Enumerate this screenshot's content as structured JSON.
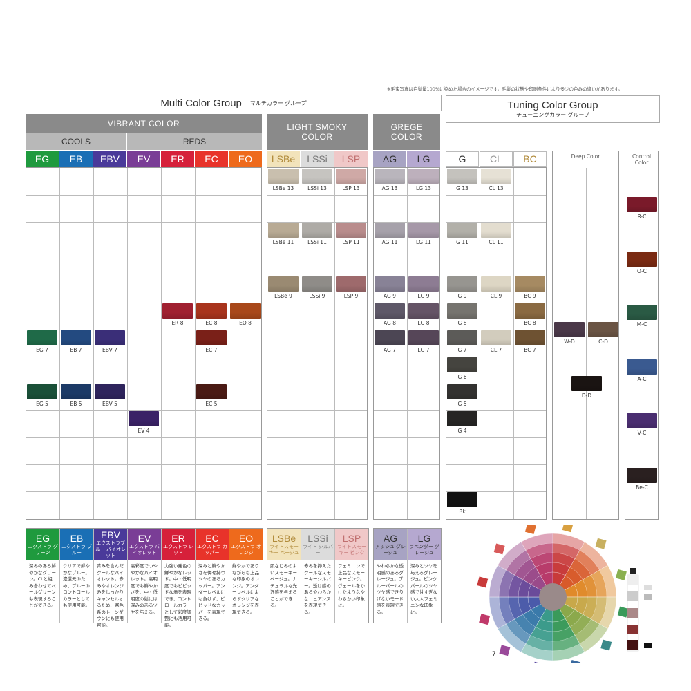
{
  "note": "※毛束写真は白髪量100%に染めた場合のイメージです。毛髪の状態や印刷条件により多少の色みの違いがあります。",
  "multi": {
    "title": "Multi Color Group",
    "sub": "マルチカラー グループ"
  },
  "tuning": {
    "title": "Tuning Color Group",
    "sub": "チューニングカラー グループ"
  },
  "bands": {
    "vibrant": "VIBRANT COLOR",
    "cools": "COOLS",
    "reds": "REDS",
    "smoky": "LIGHT SMOKY COLOR",
    "grege": "GREGE COLOR",
    "deep": "Deep Color",
    "control": "Control Color"
  },
  "headers": [
    {
      "code": "EG",
      "color": "#1f9a3e",
      "text": "#ffffff"
    },
    {
      "code": "EB",
      "color": "#1a6fb5",
      "text": "#ffffff"
    },
    {
      "code": "EBV",
      "color": "#4a3a9a",
      "text": "#ffffff"
    },
    {
      "code": "EV",
      "color": "#7a3d96",
      "text": "#ffffff"
    },
    {
      "code": "ER",
      "color": "#d6203a",
      "text": "#ffffff"
    },
    {
      "code": "EC",
      "color": "#e8332a",
      "text": "#ffffff"
    },
    {
      "code": "EO",
      "color": "#ee6a1c",
      "text": "#ffffff"
    },
    {
      "code": "LSBe",
      "color": "#f2e3bb",
      "text": "#b08a3a"
    },
    {
      "code": "LSSi",
      "color": "#dcdcdc",
      "text": "#777777"
    },
    {
      "code": "LSP",
      "color": "#f0c8c8",
      "text": "#c07070"
    },
    {
      "code": "AG",
      "color": "#a7a3c3",
      "text": "#333333"
    },
    {
      "code": "LG",
      "color": "#b5a8d0",
      "text": "#333333"
    },
    {
      "code": "G",
      "color": "#ffffff",
      "text": "#333333"
    },
    {
      "code": "CL",
      "color": "#ffffff",
      "text": "#999999"
    },
    {
      "code": "BC",
      "color": "#ffffff",
      "text": "#b08a3a"
    }
  ],
  "swatches": [
    {
      "label": "LSBe 13",
      "color": "#c9bfae"
    },
    {
      "label": "LSSi 13",
      "color": "#c6c4c0"
    },
    {
      "label": "LSP 13",
      "color": "#cfa9a6"
    },
    {
      "label": "AG 13",
      "color": "#b9b5bc"
    },
    {
      "label": "LG 13",
      "color": "#bdb0bc"
    },
    {
      "label": "G 13",
      "color": "#c4c2bd"
    },
    {
      "label": "CL 13",
      "color": "#e6e1d5"
    },
    {
      "label": "LSBe 11",
      "color": "#b8aa94"
    },
    {
      "label": "LSSi 11",
      "color": "#aeaba6"
    },
    {
      "label": "LSP 11",
      "color": "#b98c8c"
    },
    {
      "label": "AG 11",
      "color": "#a6a1aa"
    },
    {
      "label": "LG 11",
      "color": "#a698a8"
    },
    {
      "label": "G 11",
      "color": "#b2b0a9"
    },
    {
      "label": "CL 11",
      "color": "#e3ddcf"
    },
    {
      "label": "LSBe 9",
      "color": "#9a8a72"
    },
    {
      "label": "LSSi 9",
      "color": "#8f8c88"
    },
    {
      "label": "LSP 9",
      "color": "#9e6a6c"
    },
    {
      "label": "AG 9",
      "color": "#888296"
    },
    {
      "label": "LG 9",
      "color": "#8d7c93"
    },
    {
      "label": "G 9",
      "color": "#979590"
    },
    {
      "label": "CL 9",
      "color": "#ddd6c4"
    },
    {
      "label": "BC 9",
      "color": "#a68a62"
    },
    {
      "label": "ER 8",
      "color": "#a02030"
    },
    {
      "label": "EC 8",
      "color": "#a8341c"
    },
    {
      "label": "EO 8",
      "color": "#a8481a"
    },
    {
      "label": "AG 8",
      "color": "#5e5868"
    },
    {
      "label": "LG 8",
      "color": "#655466"
    },
    {
      "label": "G 8",
      "color": "#76746f"
    },
    {
      "label": "BC 8",
      "color": "#8a6a42"
    },
    {
      "label": "EG 7",
      "color": "#1f6a48"
    },
    {
      "label": "EB 7",
      "color": "#234a80"
    },
    {
      "label": "EBV 7",
      "color": "#3a2e78"
    },
    {
      "label": "EC 7",
      "color": "#7a2018"
    },
    {
      "label": "AG 7",
      "color": "#4c4654"
    },
    {
      "label": "LG 7",
      "color": "#564658"
    },
    {
      "label": "G 7",
      "color": "#5c5b58"
    },
    {
      "label": "CL 7",
      "color": "#d2ccbd"
    },
    {
      "label": "BC 7",
      "color": "#6e5232"
    },
    {
      "label": "W-D",
      "color": "#4a3848"
    },
    {
      "label": "C-D",
      "color": "#6a5444"
    },
    {
      "label": "G 6",
      "color": "#45443f"
    },
    {
      "label": "D-D",
      "color": "#1a1412"
    },
    {
      "label": "EG 5",
      "color": "#1a5038"
    },
    {
      "label": "EB 5",
      "color": "#1c3a66"
    },
    {
      "label": "EBV 5",
      "color": "#2e245c"
    },
    {
      "label": "EC 5",
      "color": "#4a1a14"
    },
    {
      "label": "G 5",
      "color": "#333230"
    },
    {
      "label": "EV 4",
      "color": "#3a2266"
    },
    {
      "label": "G 4",
      "color": "#262524"
    },
    {
      "label": "Bk",
      "color": "#121212"
    },
    {
      "label": "R-C",
      "color": "#7a1a2a"
    },
    {
      "label": "O-C",
      "color": "#7a2a12"
    },
    {
      "label": "M-C",
      "color": "#2a5a44"
    },
    {
      "label": "A-C",
      "color": "#3a5a90"
    },
    {
      "label": "V-C",
      "color": "#4a2e70"
    },
    {
      "label": "Be-C",
      "color": "#2a2020"
    }
  ],
  "descriptions": [
    {
      "code": "EG",
      "name": "エクストラ グリーン",
      "color": "#1f9a3e",
      "text": "深みのある鮮やかなグリーン。CLと組み合わせてペールグリーンも表現することができる。"
    },
    {
      "code": "EB",
      "name": "エクストラ ブルー",
      "color": "#1a6fb5",
      "text": "クリアで鮮やかなブルー。濃還元のため、ブルーのコントロールカラーとしても使用可能。"
    },
    {
      "code": "EBV",
      "name": "エクストラブルー バイオレット",
      "color": "#4a3a9a",
      "text": "青みを含んだクールなバイオレット。赤みやオレンジみをしっかりキャンセルするため、寒色系のトーンダウンにも使用可能。"
    },
    {
      "code": "EV",
      "name": "エクストラ バイオレット",
      "color": "#7a3d96",
      "text": "高彩度でつややかなバイオレット。高明度でも鮮やかさを、中・低明度の髪には深みのあるツヤを与える。"
    },
    {
      "code": "ER",
      "name": "エクストラ レッド",
      "color": "#d6203a",
      "text": "力強い発色の鮮やかなレッド。中・低明度でもビビッドな赤を表現でき、コントロールカラーとして彩度調整にも活用可能。"
    },
    {
      "code": "EC",
      "name": "エクストラ カッパー",
      "color": "#e8332a",
      "text": "深みと鮮やかさを併せ持つツヤのあるカッパー。アンダーレベルにも負けず、ビビッドなカッパーを表現できる。"
    },
    {
      "code": "EO",
      "name": "エクストラ オレンジ",
      "color": "#ee6a1c",
      "text": "鮮やかでありながらも上品な印象のオレンジ。アンダーレベルによらずクリアなオレンジを表現できる。"
    },
    {
      "code": "LSBe",
      "name": "ライトスモーキー ベージュ",
      "color": "#f2e3bb",
      "text": "肌なじみのよいスモーキーベージュ。ナチュラルな光沢感を与えることができる。"
    },
    {
      "code": "LSSi",
      "name": "ライト シルバー",
      "color": "#dcdcdc",
      "text": "赤みを抑えたクールなスモーキーシルバー。透け感のあるやわらかなニュアンスを表現できる。"
    },
    {
      "code": "LSP",
      "name": "ライトスモーキー ピンク",
      "color": "#f0c8c8",
      "text": "フェミニンで上品なスモーキーピンク。ヴェールをかけたようなやわらかい印象に。"
    },
    {
      "code": "AG",
      "name": "アッシュ グレージュ",
      "color": "#a7a3c3",
      "text": "やわらかな透明感のあるグレージュ。ブルーパールのツヤ感できりげないモード感を表現できる。"
    },
    {
      "code": "LG",
      "name": "ラベンダー グレージュ",
      "color": "#b5a8d0",
      "text": "深みとツヤを与えるグレージュ。ピンクパールのツヤ感で甘すぎない大人フェミニンな印象に。"
    }
  ],
  "page_number": "7"
}
